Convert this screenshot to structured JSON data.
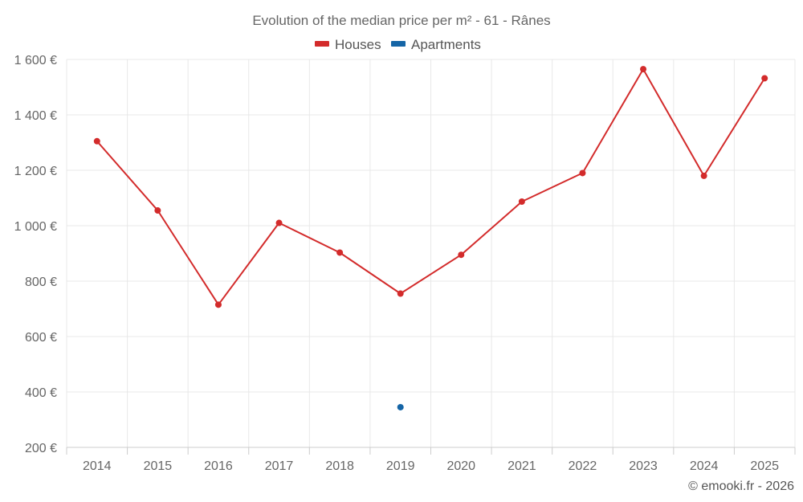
{
  "chart_data": {
    "type": "line",
    "title": "Evolution of the median price per m² - 61 - Rânes",
    "categories": [
      "2014",
      "2015",
      "2016",
      "2017",
      "2018",
      "2019",
      "2020",
      "2021",
      "2022",
      "2023",
      "2024",
      "2025"
    ],
    "series": [
      {
        "name": "Houses",
        "color": "#d32b2b",
        "values": [
          1305,
          1055,
          715,
          1010,
          903,
          755,
          895,
          1087,
          1190,
          1565,
          1180,
          1532
        ]
      },
      {
        "name": "Apartments",
        "color": "#1565a6",
        "values": [
          null,
          null,
          null,
          null,
          null,
          345,
          null,
          null,
          null,
          null,
          null,
          null
        ]
      }
    ],
    "ylim": [
      200,
      1600
    ],
    "yticks": [
      {
        "value": 200,
        "label": "200 €"
      },
      {
        "value": 400,
        "label": "400 €"
      },
      {
        "value": 600,
        "label": "600 €"
      },
      {
        "value": 800,
        "label": "800 €"
      },
      {
        "value": 1000,
        "label": "1 000 €"
      },
      {
        "value": 1200,
        "label": "1 200 €"
      },
      {
        "value": 1400,
        "label": "1 400 €"
      },
      {
        "value": 1600,
        "label": "1 600 €"
      }
    ],
    "xlabel": "",
    "ylabel": "",
    "grid": true,
    "legend_position": "top-center",
    "credit": "© emooki.fr - 2026"
  }
}
